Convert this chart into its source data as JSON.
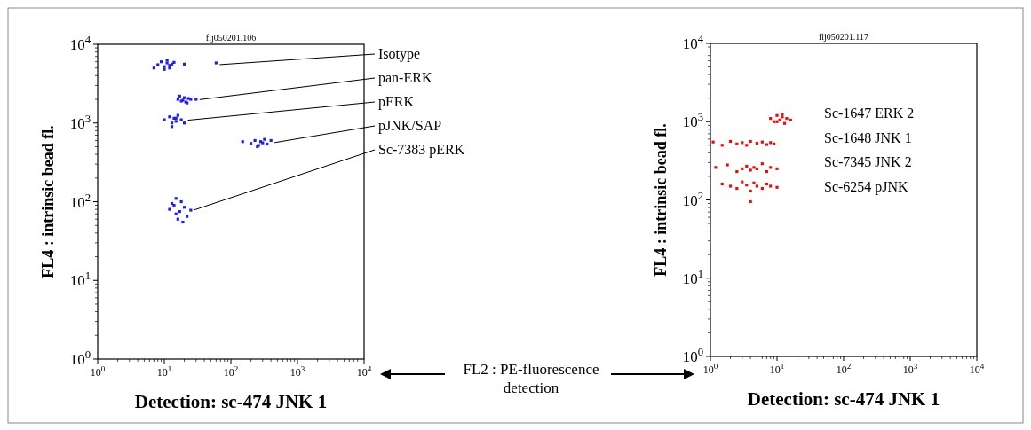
{
  "chart_data": [
    {
      "type": "scatter",
      "subtitle": "flj050201.106",
      "xlabel": "Detection: sc-474 JNK 1",
      "ylabel": "FL4 : intrinsic bead fl.",
      "log": "xy",
      "marker": "square",
      "xlim": [
        1,
        10000
      ],
      "ylim": [
        1,
        10000
      ],
      "xticks": [
        {
          "value": 1,
          "label": "10$^{0}$"
        },
        {
          "value": 10,
          "label": "10$^{1}$"
        },
        {
          "value": 100,
          "label": "10$^{2}$"
        },
        {
          "value": 1000,
          "label": "10$^{3}$"
        },
        {
          "value": 10000,
          "label": "10$^{4}$"
        }
      ],
      "yticks": [
        {
          "value": 1,
          "label": "10$^{0}$"
        },
        {
          "value": 10,
          "label": "10$^{1}$"
        },
        {
          "value": 100,
          "label": "10$^{2}$"
        },
        {
          "value": 1000,
          "label": "10$^{3}$"
        },
        {
          "value": 10000,
          "label": "10$^{4}$"
        }
      ],
      "annotations": [
        "FL2 : PE-fluorescence detection"
      ],
      "series": [
        {
          "name": "Isotype",
          "color": "#1f1fe0",
          "x": [
            8,
            9,
            10,
            11,
            12,
            13,
            10,
            11,
            12,
            14,
            7,
            20,
            60
          ],
          "values": [
            5500,
            6000,
            5200,
            5800,
            5000,
            5600,
            4800,
            6300,
            5400,
            5900,
            5000,
            5600,
            5800
          ]
        },
        {
          "name": "pan-ERK",
          "color": "#1f1fe0",
          "x": [
            16,
            18,
            20,
            22,
            25,
            17,
            19,
            21,
            23,
            30
          ],
          "values": [
            2000,
            1900,
            2100,
            1800,
            2000,
            2200,
            1950,
            1850,
            2050,
            2000
          ]
        },
        {
          "name": "pERK",
          "color": "#1f1fe0",
          "x": [
            10,
            12,
            13,
            14,
            15,
            16,
            18,
            20,
            13,
            15
          ],
          "values": [
            1100,
            1200,
            1000,
            1150,
            1050,
            1250,
            1100,
            1000,
            900,
            1150
          ]
        },
        {
          "name": "pJNK/SAP",
          "color": "#1f1fe0",
          "x": [
            200,
            230,
            260,
            280,
            300,
            320,
            350,
            250,
            400,
            150
          ],
          "values": [
            550,
            600,
            520,
            580,
            560,
            620,
            540,
            500,
            600,
            580
          ]
        },
        {
          "name": "Sc-7383 pERK",
          "color": "#1f1fe0",
          "x": [
            12,
            14,
            15,
            16,
            17,
            18,
            20,
            22,
            25,
            15,
            19,
            13
          ],
          "values": [
            80,
            90,
            70,
            60,
            75,
            100,
            85,
            65,
            78,
            110,
            55,
            95
          ]
        }
      ]
    },
    {
      "type": "scatter",
      "subtitle": "flj050201.117",
      "xlabel": "Detection: sc-474 JNK 1",
      "ylabel": "FL4 : intrinsic bead fl.",
      "log": "xy",
      "marker": "square",
      "xlim": [
        1,
        10000
      ],
      "ylim": [
        1,
        10000
      ],
      "xticks": [
        {
          "value": 1,
          "label": "10$^{0}$"
        },
        {
          "value": 10,
          "label": "10$^{1}$"
        },
        {
          "value": 100,
          "label": "10$^{2}$"
        },
        {
          "value": 1000,
          "label": "10$^{3}$"
        },
        {
          "value": 10000,
          "label": "10$^{4}$"
        }
      ],
      "yticks": [
        {
          "value": 1,
          "label": "10$^{0}$"
        },
        {
          "value": 10,
          "label": "10$^{1}$"
        },
        {
          "value": 100,
          "label": "10$^{2}$"
        },
        {
          "value": 1000,
          "label": "10$^{3}$"
        },
        {
          "value": 10000,
          "label": "10$^{4}$"
        }
      ],
      "series": [
        {
          "name": "Sc-1647 ERK 2",
          "color": "#e01010",
          "x": [
            8,
            9,
            10,
            11,
            12,
            13,
            14,
            16,
            12,
            10
          ],
          "values": [
            1100,
            1000,
            1200,
            1050,
            1150,
            950,
            1100,
            1050,
            1250,
            1000
          ]
        },
        {
          "name": "Sc-1648 JNK 1",
          "color": "#e01010",
          "x": [
            1.1,
            1.5,
            2,
            2.5,
            3,
            3.5,
            4,
            5,
            6,
            7,
            8,
            9
          ],
          "values": [
            550,
            500,
            560,
            520,
            540,
            500,
            560,
            530,
            550,
            510,
            540,
            520
          ]
        },
        {
          "name": "Sc-7345 JNK 2",
          "color": "#e01010",
          "x": [
            1.2,
            1.8,
            2.5,
            3,
            3.5,
            4,
            4.5,
            5,
            6,
            7,
            8,
            10
          ],
          "values": [
            260,
            280,
            230,
            250,
            270,
            240,
            260,
            250,
            290,
            230,
            260,
            250
          ]
        },
        {
          "name": "Sc-6254 pJNK",
          "color": "#e01010",
          "x": [
            1.5,
            2,
            2.5,
            3,
            3.5,
            4,
            4.5,
            5,
            6,
            7,
            8,
            10,
            4
          ],
          "values": [
            160,
            150,
            140,
            170,
            155,
            130,
            165,
            150,
            140,
            160,
            150,
            145,
            95
          ]
        }
      ]
    }
  ]
}
